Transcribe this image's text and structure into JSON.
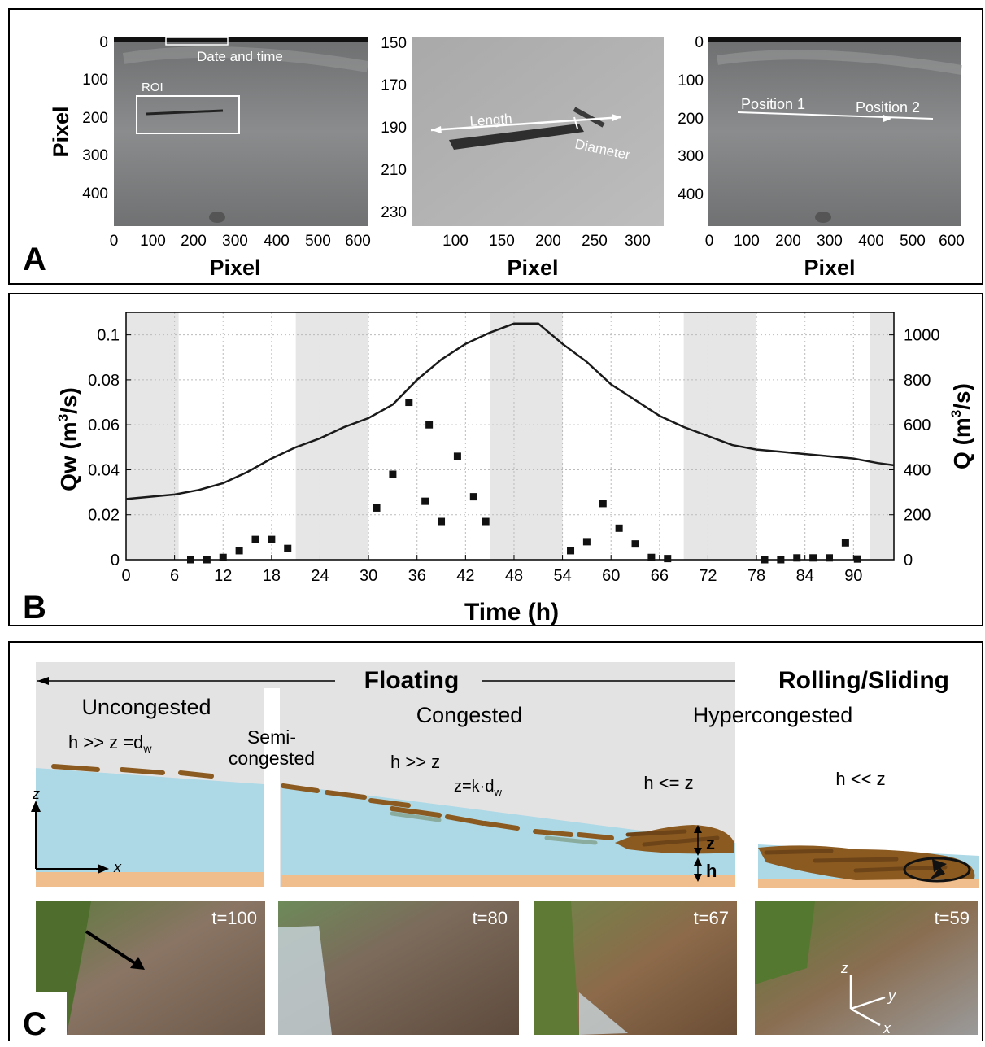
{
  "panel_a": {
    "label": "A",
    "images": [
      {
        "y_axis_label": "Pixel",
        "y_ticks": [
          "0",
          "100",
          "200",
          "300",
          "400"
        ],
        "x_ticks": [
          "0",
          "100",
          "200",
          "300",
          "400",
          "500",
          "600"
        ],
        "x_axis_label": "Pixel",
        "annotations": [
          "Date and time",
          "ROI"
        ]
      },
      {
        "y_ticks": [
          "150",
          "170",
          "190",
          "210",
          "230"
        ],
        "x_ticks": [
          "100",
          "150",
          "200",
          "250",
          "300"
        ],
        "x_axis_label": "Pixel",
        "annotations": [
          "Length",
          "Diameter"
        ]
      },
      {
        "y_ticks": [
          "0",
          "100",
          "200",
          "300",
          "400"
        ],
        "x_ticks": [
          "0",
          "100",
          "200",
          "300",
          "400",
          "500",
          "600"
        ],
        "x_axis_label": "Pixel",
        "annotations": [
          "Position 1",
          "Position 2"
        ]
      }
    ]
  },
  "panel_b": {
    "label": "B",
    "chart_data": {
      "type": "scatter",
      "xlabel": "Time (h)",
      "ylabel_left_main": "Qw (m",
      "ylabel_left_sup": "3",
      "ylabel_left_tail": "/s)",
      "ylabel_right_main": "Q (m",
      "ylabel_right_sup": "3",
      "ylabel_right_tail": "/s)",
      "xlim": [
        0,
        95
      ],
      "ylim_left": [
        0,
        0.11
      ],
      "ylim_right": [
        0,
        1100
      ],
      "x_ticks": [
        0,
        6,
        12,
        18,
        24,
        30,
        36,
        42,
        48,
        54,
        60,
        66,
        72,
        78,
        84,
        90
      ],
      "y_ticks_left": [
        0,
        0.02,
        0.04,
        0.06,
        0.08,
        0.1
      ],
      "y_ticks_left_labels": [
        "0",
        "0.02",
        "0.04",
        "0.06",
        "0.08",
        "0.1"
      ],
      "y_ticks_right": [
        0,
        200,
        400,
        600,
        800,
        1000
      ],
      "grid": true,
      "night_bands": [
        [
          0,
          6.5
        ],
        [
          21,
          30
        ],
        [
          45,
          54
        ],
        [
          69,
          78
        ],
        [
          92,
          95
        ]
      ],
      "series": [
        {
          "axis": "left",
          "marker": "square",
          "x": [
            8,
            10,
            12,
            14,
            16,
            18,
            20,
            31,
            33,
            35,
            37,
            37.5,
            39,
            41,
            43,
            44.5,
            55,
            57,
            59,
            61,
            63,
            65,
            67,
            79,
            81,
            83,
            85,
            87,
            89,
            90.5
          ],
          "y": [
            0,
            0,
            0.001,
            0.004,
            0.009,
            0.009,
            0.005,
            0.023,
            0.038,
            0.07,
            0.026,
            0.06,
            0.017,
            0.046,
            0.028,
            0.017,
            0.004,
            0.008,
            0.025,
            0.014,
            0.007,
            0.001,
            0.0005,
            0,
            0,
            0.0008,
            0.0008,
            0.0008,
            0.0075,
            0.0003
          ]
        },
        {
          "axis": "right",
          "marker": "line",
          "x": [
            0,
            3,
            6,
            9,
            12,
            15,
            18,
            21,
            24,
            27,
            30,
            33,
            36,
            39,
            42,
            45,
            48,
            51,
            54,
            57,
            60,
            63,
            66,
            69,
            72,
            75,
            78,
            81,
            84,
            87,
            90,
            93,
            95
          ],
          "y": [
            270,
            280,
            290,
            310,
            340,
            390,
            450,
            500,
            540,
            590,
            630,
            690,
            800,
            890,
            960,
            1010,
            1050,
            1050,
            960,
            880,
            780,
            710,
            640,
            590,
            550,
            510,
            490,
            480,
            470,
            460,
            450,
            430,
            420
          ]
        }
      ]
    }
  },
  "panel_c": {
    "label": "C",
    "floating_label": "Floating",
    "rolling_label": "Rolling/Sliding",
    "regimes": {
      "uncongested": "Uncongested",
      "semi_line1": "Semi-",
      "semi_line2": "congested",
      "congested": "Congested",
      "hypercongested": "Hypercongested"
    },
    "relations": {
      "uncongested": "h >> z =d",
      "uncongested_sub": "w",
      "congested_1": "h >> z",
      "congested_2": "z=k·d",
      "congested_sub": "w",
      "hypercongested": "h <= z",
      "rolling": "h << z"
    },
    "axes": {
      "z": "z",
      "x": "x"
    },
    "dims": {
      "z": "z",
      "h": "h"
    },
    "photos": [
      {
        "time": "t=100"
      },
      {
        "time": "t=80"
      },
      {
        "time": "t=67"
      },
      {
        "time": "t=59",
        "axes": [
          "z",
          "y",
          "x"
        ]
      }
    ],
    "colors": {
      "water": "#add8e6",
      "bed": "#f0be8c",
      "wood": "#8b5a20",
      "background": "#e3e3e3"
    }
  }
}
